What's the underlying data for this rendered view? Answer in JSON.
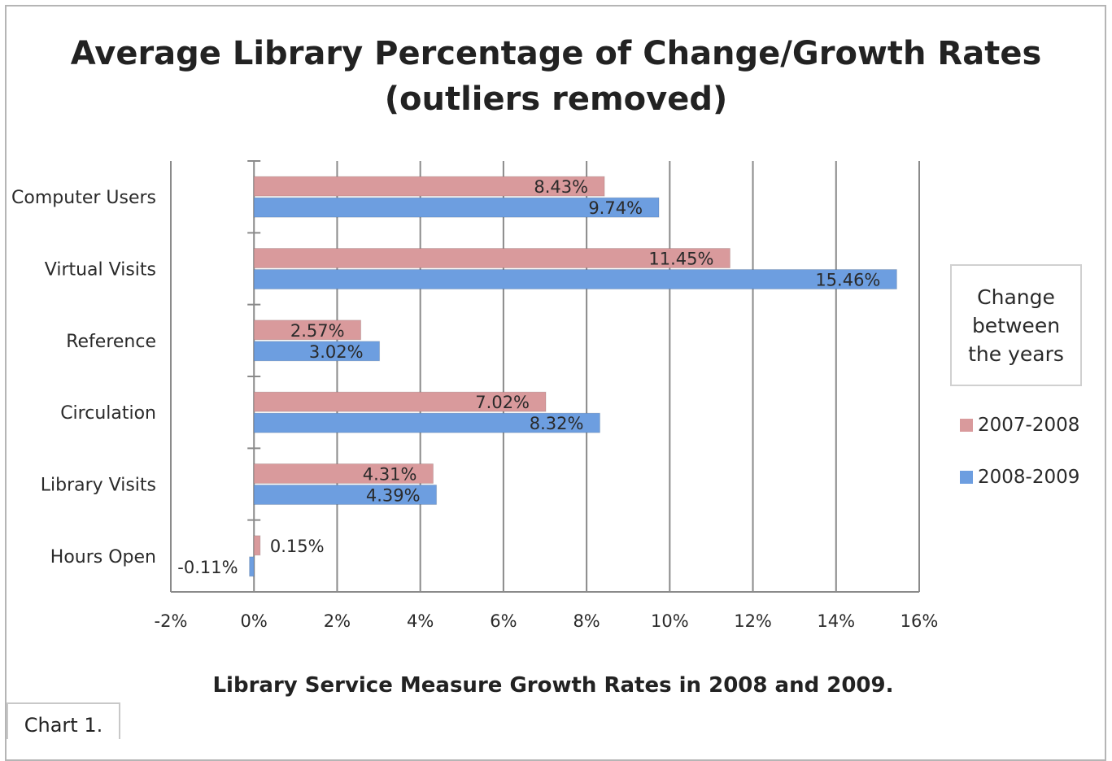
{
  "chart_data": {
    "type": "bar",
    "orientation": "horizontal",
    "title_lines": [
      "Average Library Percentage of Change/Growth Rates",
      "(outliers removed)"
    ],
    "categories": [
      "Computer Users",
      "Virtual Visits",
      "Reference",
      "Circulation",
      "Library Visits",
      "Hours Open"
    ],
    "series": [
      {
        "name": "2007-2008",
        "color": "#d99a9c",
        "values": [
          8.43,
          11.45,
          2.57,
          7.02,
          4.31,
          0.15
        ],
        "labels": [
          "8.43%",
          "11.45%",
          "2.57%",
          "7.02%",
          "4.31%",
          "0.15%"
        ]
      },
      {
        "name": "2008-2009",
        "color": "#6d9ee0",
        "values": [
          9.74,
          15.46,
          3.02,
          8.32,
          4.39,
          -0.11
        ],
        "labels": [
          "9.74%",
          "15.46%",
          "3.02%",
          "8.32%",
          "4.39%",
          "-0.11%"
        ]
      }
    ],
    "xlim": [
      -2,
      16
    ],
    "xticks": [
      -2,
      0,
      2,
      4,
      6,
      8,
      10,
      12,
      14,
      16
    ],
    "xtick_labels": [
      "-2%",
      "0%",
      "2%",
      "4%",
      "6%",
      "8%",
      "10%",
      "12%",
      "14%",
      "16%"
    ],
    "grid": true,
    "legend_title": "Change between the years",
    "legend_position": "right",
    "caption": "Library Service Measure Growth Rates in 2008 and 2009.",
    "figure_label": "Chart 1."
  }
}
